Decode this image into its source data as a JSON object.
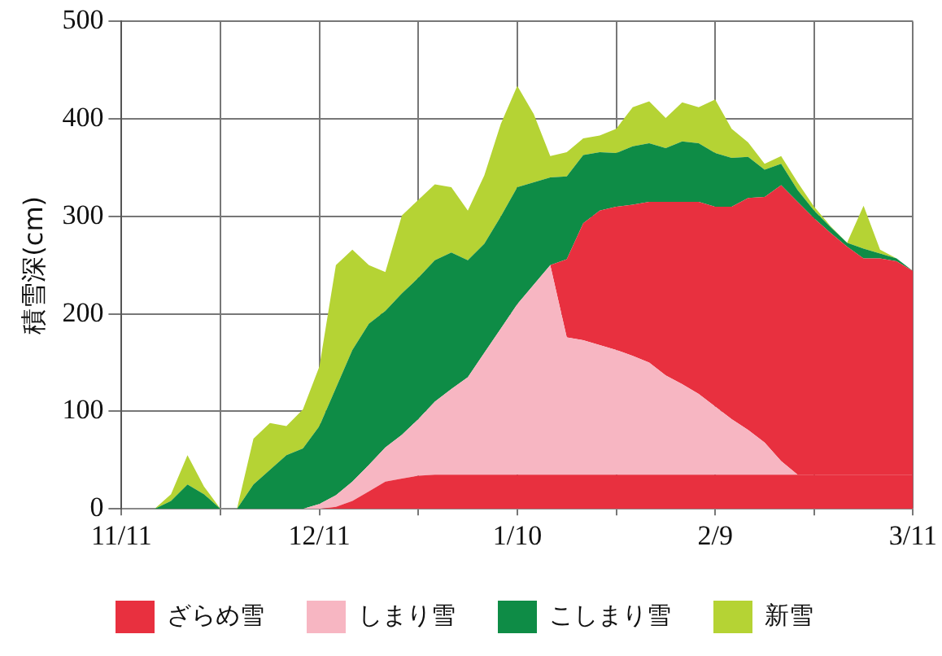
{
  "chart_data": {
    "type": "area",
    "stacked": true,
    "ylabel": "積雪深(cm)",
    "categories": [
      "11/11",
      null,
      null,
      null,
      null,
      null,
      null,
      null,
      null,
      null,
      null,
      null,
      "12/11",
      null,
      null,
      null,
      null,
      null,
      null,
      null,
      null,
      null,
      null,
      null,
      "1/10",
      null,
      null,
      null,
      null,
      null,
      null,
      null,
      null,
      null,
      null,
      null,
      "2/9",
      null,
      null,
      null,
      null,
      null,
      null,
      null,
      null,
      null,
      null,
      null,
      "3/11"
    ],
    "series": [
      {
        "name": "ざらめ雪",
        "color": "#e8303f",
        "values": [
          0,
          0,
          0,
          0,
          0,
          0,
          0,
          0,
          0,
          0,
          0,
          0,
          0,
          2,
          8,
          18,
          28,
          31,
          34,
          35,
          35,
          35,
          35,
          35,
          35,
          35,
          35,
          35,
          35,
          35,
          35,
          35,
          35,
          35,
          35,
          35,
          35,
          35,
          35,
          35,
          35,
          35,
          35,
          35,
          35,
          35,
          35,
          35,
          35
        ]
      },
      {
        "name": "しまり雪",
        "color": "#f7b6c2",
        "values": [
          0,
          0,
          0,
          0,
          0,
          0,
          0,
          0,
          0,
          0,
          0,
          0,
          5,
          12,
          20,
          27,
          35,
          45,
          58,
          75,
          88,
          100,
          125,
          150,
          175,
          195,
          215,
          141,
          138,
          133,
          128,
          122,
          115,
          102,
          93,
          83,
          70,
          57,
          46,
          33,
          14,
          0,
          0,
          0,
          0,
          0,
          0,
          0,
          0
        ]
      },
      {
        "color": "#e8303f",
        "values": [
          0,
          0,
          0,
          0,
          0,
          0,
          0,
          0,
          0,
          0,
          0,
          0,
          0,
          0,
          0,
          0,
          0,
          0,
          0,
          0,
          0,
          0,
          0,
          0,
          0,
          0,
          0,
          80,
          120,
          138,
          147,
          155,
          165,
          178,
          187,
          197,
          205,
          218,
          238,
          252,
          283,
          280,
          263,
          248,
          234,
          222,
          222,
          219,
          209
        ]
      },
      {
        "name": "こしまり雪",
        "color": "#0e8c46",
        "values": [
          0,
          0,
          0,
          8,
          25,
          15,
          0,
          0,
          25,
          40,
          55,
          62,
          80,
          110,
          135,
          145,
          140,
          145,
          145,
          145,
          140,
          120,
          112,
          115,
          120,
          105,
          90,
          85,
          70,
          60,
          55,
          60,
          60,
          55,
          62,
          60,
          55,
          50,
          42,
          28,
          22,
          12,
          8,
          6,
          4,
          10,
          5,
          3,
          0
        ]
      },
      {
        "name": "新雪",
        "color": "#b5d334",
        "values": [
          0,
          0,
          0,
          7,
          30,
          8,
          0,
          0,
          47,
          48,
          30,
          40,
          61,
          126,
          103,
          60,
          40,
          80,
          80,
          78,
          67,
          51,
          70,
          95,
          104,
          70,
          22,
          25,
          17,
          17,
          25,
          40,
          43,
          31,
          40,
          37,
          55,
          30,
          15,
          6,
          8,
          8,
          4,
          1,
          0,
          44,
          4,
          0,
          0
        ]
      }
    ],
    "ylim": [
      0,
      500
    ],
    "yticks": [
      0,
      100,
      200,
      300,
      400,
      500
    ],
    "grid": true,
    "legend": "bottom",
    "marker": "none"
  }
}
